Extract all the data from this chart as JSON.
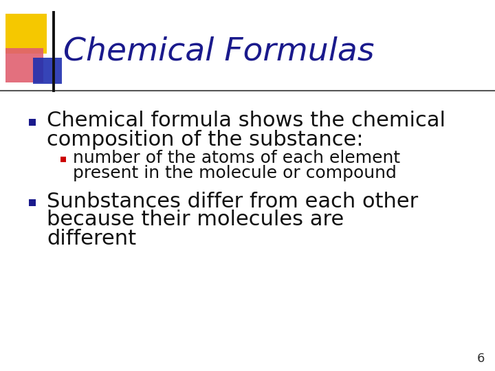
{
  "title": "Chemical Formulas",
  "title_color": "#1a1a8c",
  "title_fontsize": 34,
  "background_color": "#ffffff",
  "bullet_main_color": "#1a1a8c",
  "bullet_sub_color": "#cc0000",
  "bullet1_text_line1": "Chemical formula shows the chemical",
  "bullet1_text_line2": "composition of the substance:",
  "sub_bullet_text_line1": "number of the atoms of each element",
  "sub_bullet_text_line2": "present in the molecule or compound",
  "bullet2_text_line1": "Sunbstances differ from each other",
  "bullet2_text_line2": "because their molecules are",
  "bullet2_text_line3": "different",
  "page_number": "6",
  "deco_yellow_color": "#f5c800",
  "deco_red_color": "#e06070",
  "deco_blue_color": "#2030b0",
  "main_text_fontsize": 22,
  "sub_text_fontsize": 18,
  "page_num_fontsize": 13
}
